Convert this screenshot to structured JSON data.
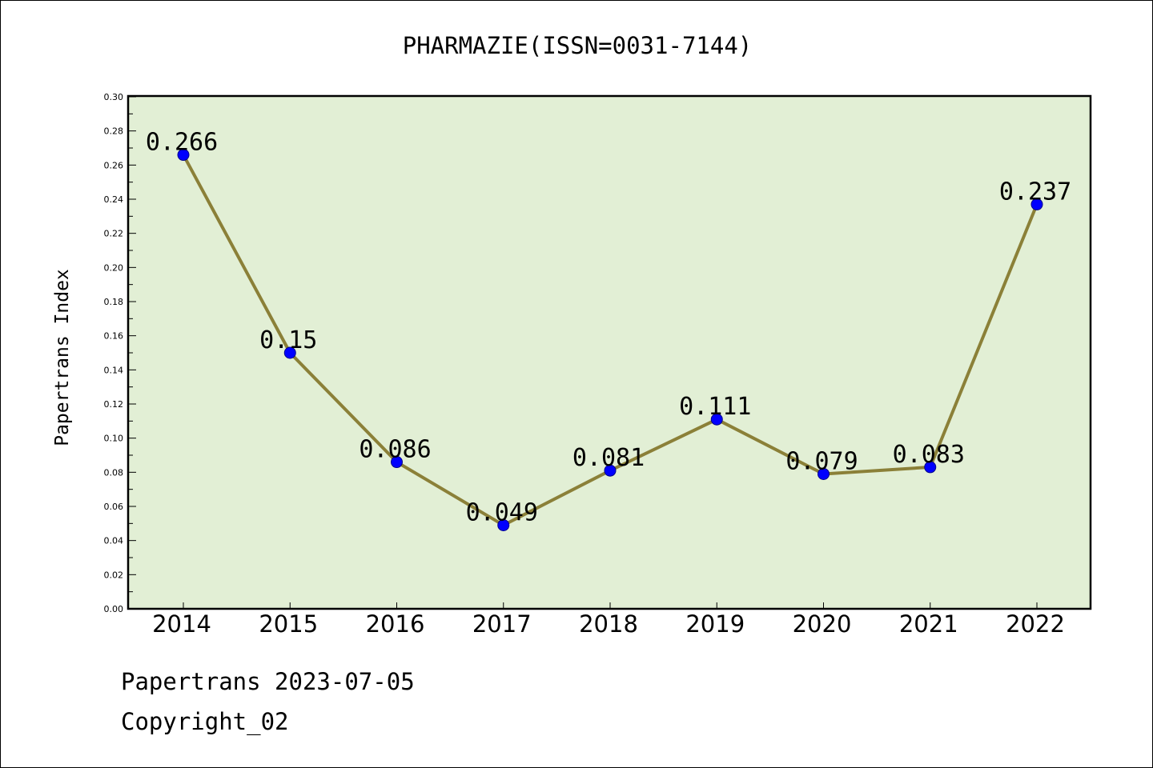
{
  "chart_data": {
    "type": "line",
    "title": "PHARMAZIE(ISSN=0031-7144)",
    "xlabel": "",
    "ylabel": "Papertrans Index",
    "categories": [
      "2014",
      "2015",
      "2016",
      "2017",
      "2018",
      "2019",
      "2020",
      "2021",
      "2022"
    ],
    "values": [
      0.266,
      0.15,
      0.086,
      0.049,
      0.081,
      0.111,
      0.079,
      0.083,
      0.237
    ],
    "data_labels": [
      "0.266",
      "0.15",
      "0.086",
      "0.049",
      "0.081",
      "0.111",
      "0.079",
      "0.083",
      "0.237"
    ],
    "yticks": [
      "0.00",
      "0.02",
      "0.04",
      "0.06",
      "0.08",
      "0.10",
      "0.12",
      "0.14",
      "0.16",
      "0.18",
      "0.20",
      "0.22",
      "0.24",
      "0.26",
      "0.28",
      "0.30"
    ],
    "ylim": [
      0,
      0.3
    ],
    "grid": false,
    "colors": {
      "plot_background": "#e2efd5",
      "line": "#8b8038",
      "marker": "#0000ff"
    }
  },
  "footer": {
    "line1": "Papertrans 2023-07-05",
    "line2": "Copyright_02"
  }
}
